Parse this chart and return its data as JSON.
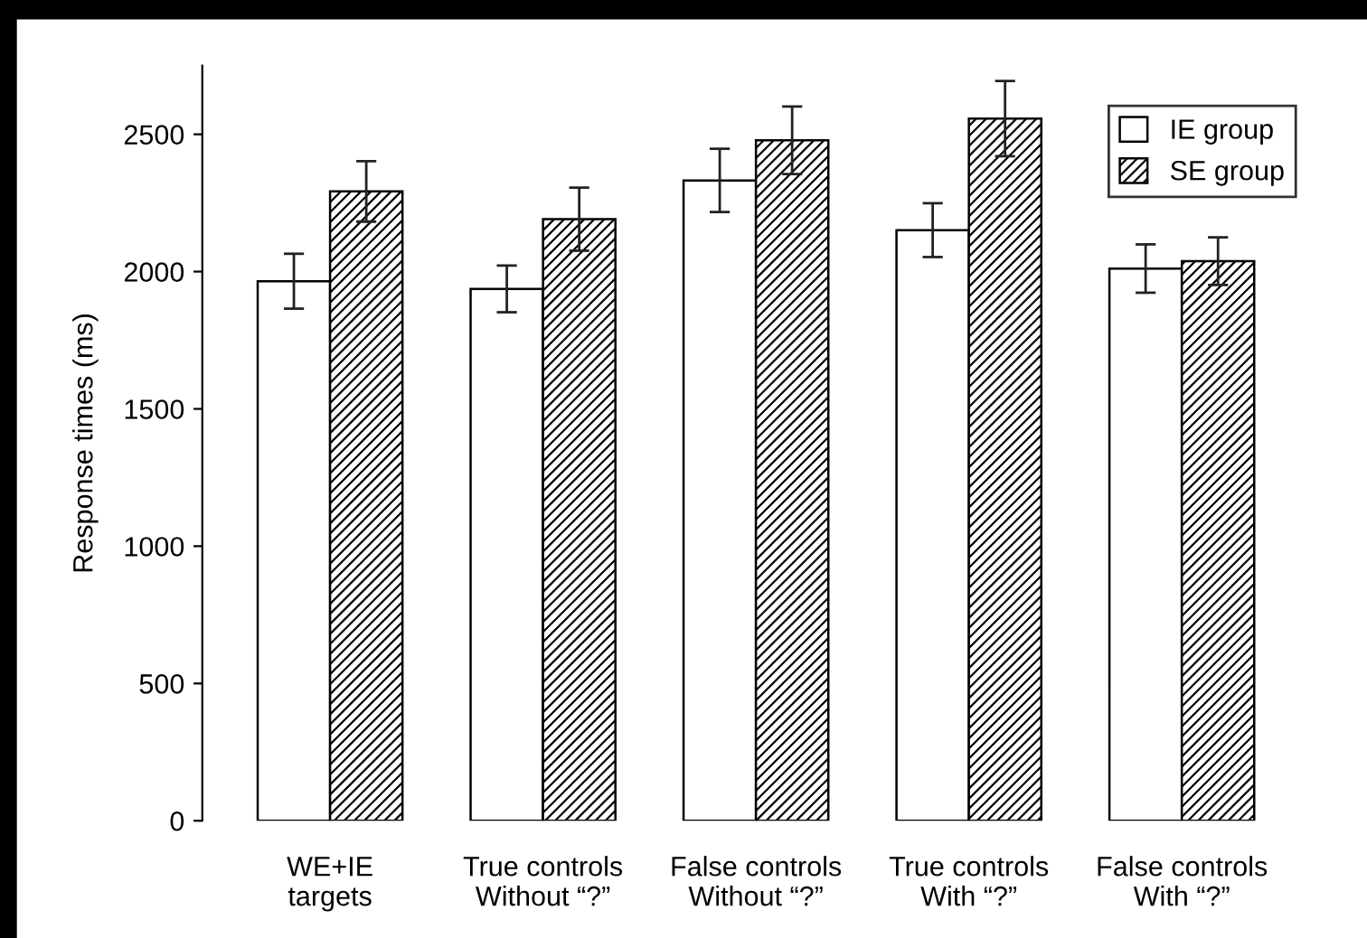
{
  "chart_data": {
    "type": "bar",
    "ylabel": "Response times (ms)",
    "categories": [
      "WE+IE\ntargets",
      "True controls\nWithout “?”",
      "False controls\nWithout “?”",
      "True controls\nWith “?”",
      "False controls\nWith “?”"
    ],
    "series": [
      {
        "name": "IE group",
        "color": "#ffffff",
        "values": [
          1965,
          1937,
          2332,
          2151,
          2011
        ],
        "errors": [
          100,
          85,
          115,
          98,
          88
        ]
      },
      {
        "name": "SE group",
        "color": "#000000",
        "values": [
          2292,
          2191,
          2478,
          2557,
          2038
        ],
        "errors": [
          110,
          115,
          123,
          137,
          87
        ]
      }
    ],
    "ylim": [
      0,
      2750
    ],
    "yticks": [
      0,
      500,
      1000,
      1500,
      2000,
      2500
    ],
    "grid": false,
    "legend": "top right"
  }
}
